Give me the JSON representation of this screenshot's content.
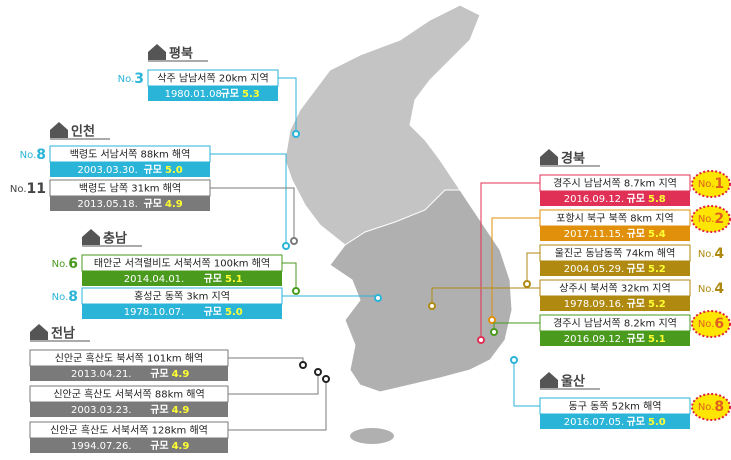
{
  "regions": [
    {
      "name": "평북",
      "entries": [
        {
          "no": "No.",
          "rank": 3,
          "location": "삭주 남남서쪽 20km 지역",
          "date": "1980.01.08.",
          "magnitude_label": "규모",
          "magnitude": "5.3",
          "color": "#2ab4d8",
          "highlight": false
        }
      ]
    },
    {
      "name": "인천",
      "entries": [
        {
          "no": "No.",
          "rank": 8,
          "location": "백령도 서남서쪽 88km 해역",
          "date": "2003.03.30.",
          "magnitude_label": "규모",
          "magnitude": "5.0",
          "color": "#2ab4d8",
          "highlight": false
        },
        {
          "no": "No.",
          "rank": 11,
          "location": "백령도 남쪽 31km 해역",
          "date": "2013.05.18.",
          "magnitude_label": "규모",
          "magnitude": "4.9",
          "color": "#7a7a7a",
          "highlight": false
        }
      ]
    },
    {
      "name": "충남",
      "entries": [
        {
          "no": "No.",
          "rank": 6,
          "location": "태안군 서격렬비도 서북서쪽 100km 해역",
          "date": "2014.04.01.",
          "magnitude_label": "규모",
          "magnitude": "5.1",
          "color": "#4a9a1e",
          "highlight": false
        },
        {
          "no": "No.",
          "rank": 8,
          "location": "홍성군 동쪽 3km 지역",
          "date": "1978.10.07.",
          "magnitude_label": "규모",
          "magnitude": "5.0",
          "color": "#2ab4d8",
          "highlight": false
        }
      ]
    },
    {
      "name": "전남",
      "entries": [
        {
          "location": "신안군 흑산도 북서쪽 101km 해역",
          "date": "2013.04.21.",
          "magnitude_label": "규모",
          "magnitude": "4.9",
          "color": "#7a7a7a",
          "highlight": false
        },
        {
          "location": "신안군 흑산도 서북서쪽 88km 해역",
          "date": "2003.03.23.",
          "magnitude_label": "규모",
          "magnitude": "4.9",
          "color": "#7a7a7a",
          "highlight": false
        },
        {
          "location": "신안군 흑산도 서북서쪽 128km 해역",
          "date": "1994.07.26.",
          "magnitude_label": "규모",
          "magnitude": "4.9",
          "color": "#7a7a7a",
          "highlight": false
        }
      ]
    },
    {
      "name": "경북",
      "entries": [
        {
          "no": "No.",
          "rank": 1,
          "location": "경주시 남남서쪽 8.7km 지역",
          "date": "2016.09.12.",
          "magnitude_label": "규모",
          "magnitude": "5.8",
          "color": "#e03055",
          "highlight": true
        },
        {
          "no": "No.",
          "rank": 2,
          "location": "포항시 북구 북쪽 8km 지역",
          "date": "2017.11.15.",
          "magnitude_label": "규모",
          "magnitude": "5.4",
          "color": "#e0900a",
          "highlight": true
        },
        {
          "no": "No.",
          "rank": 4,
          "location": "울진군 동남동쪽 74km 해역",
          "date": "2004.05.29.",
          "magnitude_label": "규모",
          "magnitude": "5.2",
          "color": "#b08a10",
          "highlight": false
        },
        {
          "no": "No.",
          "rank": 4,
          "location": "상주시 북서쪽 32km 지역",
          "date": "1978.09.16.",
          "magnitude_label": "규모",
          "magnitude": "5.2",
          "color": "#b08a10",
          "highlight": false
        },
        {
          "no": "No.",
          "rank": 6,
          "location": "경주시 남남서쪽 8.2km 지역",
          "date": "2016.09.12.",
          "magnitude_label": "규모",
          "magnitude": "5.1",
          "color": "#4a9a1e",
          "highlight": true
        }
      ]
    },
    {
      "name": "울산",
      "entries": [
        {
          "no": "No.",
          "rank": 8,
          "location": "동구 동쪽 52km 해역",
          "date": "2016.07.05.",
          "magnitude_label": "규모",
          "magnitude": "5.0",
          "color": "#2ab4d8",
          "highlight": true
        }
      ]
    }
  ]
}
